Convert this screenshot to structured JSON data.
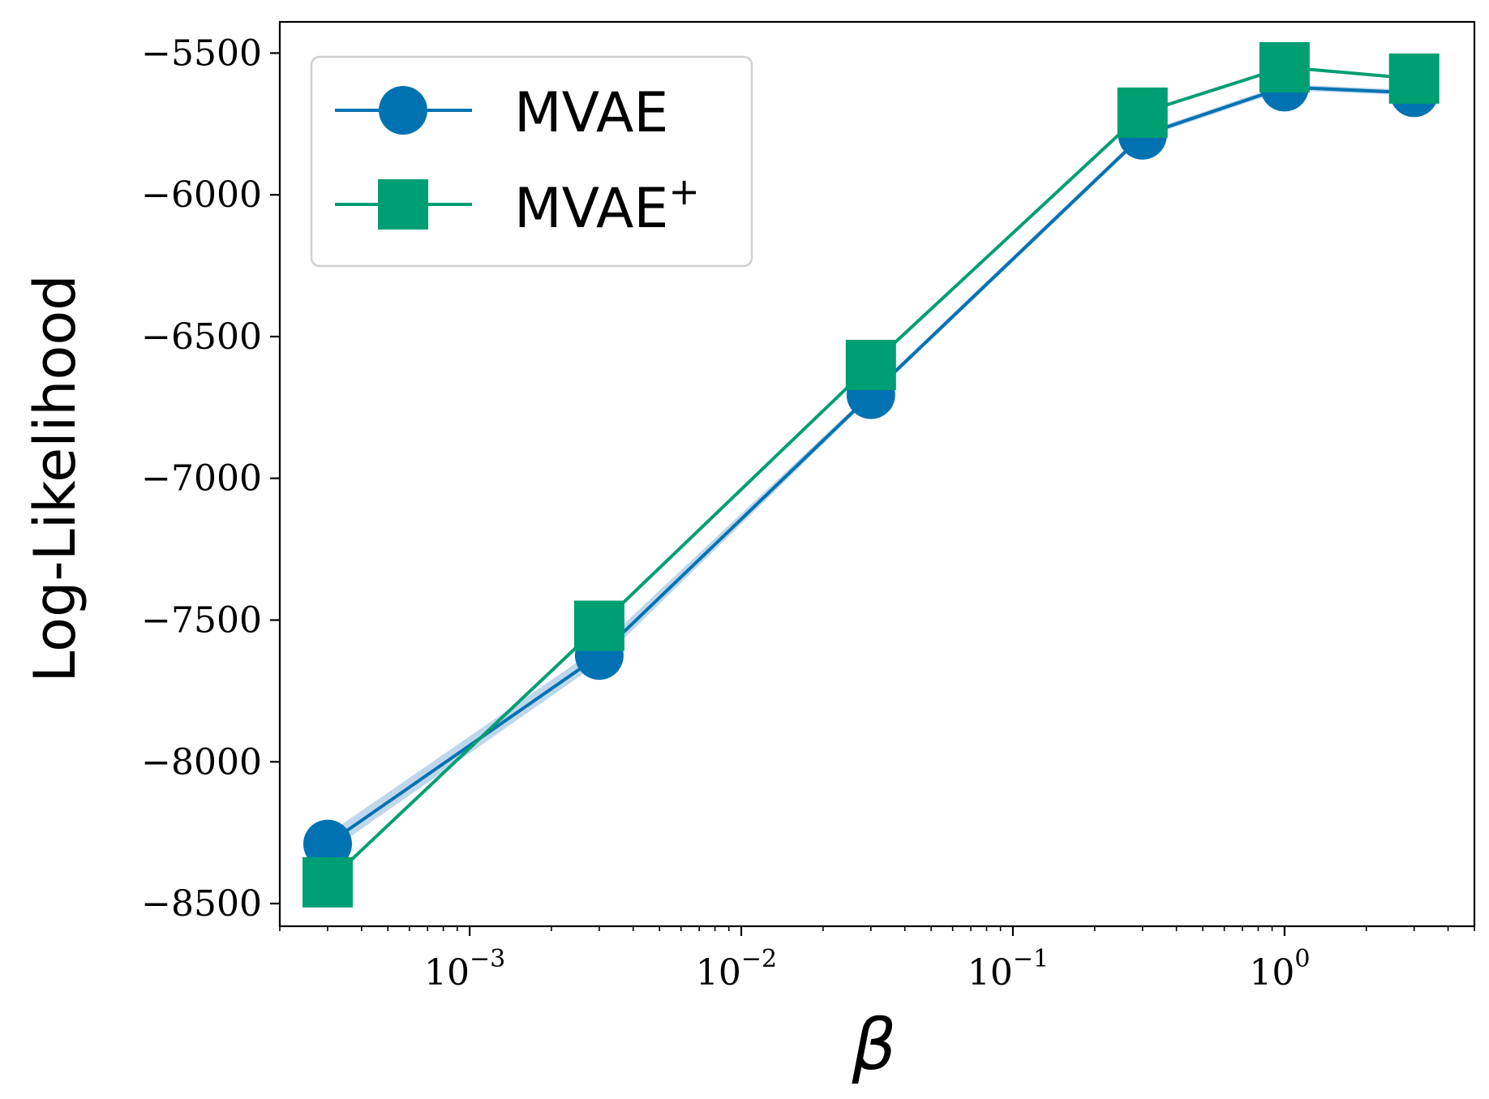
{
  "chart_data": {
    "type": "line",
    "title": "",
    "xlabel": "β",
    "ylabel": "Log-Likelihood",
    "xscale": "log",
    "xlim": [
      0.0002,
      5
    ],
    "ylim": [
      -8580,
      -5390
    ],
    "yticks": [
      -5500,
      -6000,
      -6500,
      -7000,
      -7500,
      -8000,
      -8500
    ],
    "ytick_labels": [
      "−5500",
      "−6000",
      "−6500",
      "−7000",
      "−7500",
      "−8000",
      "−8500"
    ],
    "xticks": [
      {
        "value": 0.001,
        "base": "10",
        "exp": "−3"
      },
      {
        "value": 0.01,
        "base": "10",
        "exp": "−2"
      },
      {
        "value": 0.1,
        "base": "10",
        "exp": "−1"
      },
      {
        "value": 1,
        "base": "10",
        "exp": "0"
      }
    ],
    "grid": false,
    "legend_position": "top-left",
    "x": [
      0.0003,
      0.003,
      0.03,
      0.3,
      1,
      3
    ],
    "series": [
      {
        "name": "MVAE",
        "sup": "",
        "marker": "circle",
        "color": "#0072b2",
        "band_color": "#b9d3e9",
        "values": [
          -8290,
          -7625,
          -6705,
          -5790,
          -5620,
          -5640
        ],
        "lower": [
          -8320,
          -7650,
          -6715,
          -5800,
          -5630,
          -5650
        ],
        "upper": [
          -8255,
          -7595,
          -6695,
          -5780,
          -5610,
          -5630
        ]
      },
      {
        "name": "MVAE",
        "sup": "+",
        "marker": "square",
        "color": "#009e73",
        "values": [
          -8425,
          -7520,
          -6600,
          -5710,
          -5550,
          -5590
        ]
      }
    ]
  }
}
